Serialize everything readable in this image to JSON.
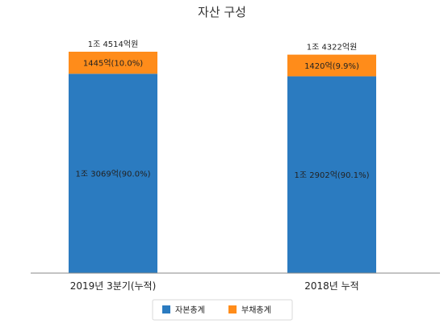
{
  "chart_data": {
    "type": "bar",
    "stacked": true,
    "title": "자산 구성",
    "categories": [
      "2019년 3분기(누적)",
      "2018년 누적"
    ],
    "totals": [
      "1조 4514억원",
      "1조 4322억원"
    ],
    "total_values": [
      14514,
      14322
    ],
    "series": [
      {
        "name": "자본총계",
        "color": "#2b7bc0",
        "values": [
          13069,
          12902
        ],
        "labels": [
          "1조 3069억(90.0%)",
          "1조 2902억(90.1%)"
        ]
      },
      {
        "name": "부채총계",
        "color": "#ff8c1a",
        "values": [
          1445,
          1420
        ],
        "labels": [
          "1445억(10.0%)",
          "1420억(9.9%)"
        ]
      }
    ],
    "ylim": [
      0,
      16000
    ],
    "grid": false,
    "legend": "bottom-center",
    "axis_color": "#888888"
  }
}
